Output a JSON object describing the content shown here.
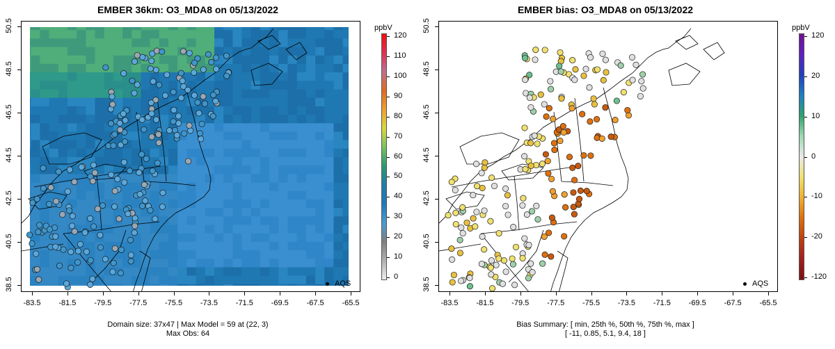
{
  "left": {
    "title": "EMBER 36km: O3_MDA8 on 05/13/2022",
    "unit": "ppbV",
    "colorbar_ticks": [
      "0",
      "10",
      "20",
      "30",
      "40",
      "50",
      "60",
      "70",
      "80",
      "90",
      "100",
      "110",
      "120"
    ],
    "colorbar_colors": [
      "#eeeeee",
      "#b0b0b0",
      "#808080",
      "#4a9bd0",
      "#1f7ab8",
      "#1c7fa8",
      "#2a9a70",
      "#7ac060",
      "#d8d840",
      "#eda030",
      "#e06a20",
      "#c07090",
      "#e03050",
      "#f01010"
    ],
    "legend_label": "AQS",
    "caption_line1": "Domain size: 37x47 | Max Model = 59 at (22, 3)",
    "caption_line2": "Max Obs: 64"
  },
  "right": {
    "title": "EMBER bias: O3_MDA8 on 05/13/2022",
    "unit": "ppbV",
    "colorbar_ticks": [
      "120",
      "20",
      "10",
      "0",
      "-10",
      "-20",
      "-120"
    ],
    "colorbar_colors": [
      "#7a1010",
      "#a02020",
      "#c04010",
      "#dd7010",
      "#eeb030",
      "#f0e070",
      "#e8e8e8",
      "#a0d8b0",
      "#30a070",
      "#2080c0",
      "#2040c0",
      "#6020c0",
      "#701090"
    ],
    "legend_label": "AQS",
    "caption_line1": "Bias Summary: [ min, 25th %, 50th %, 75th %, max ]",
    "caption_line2": "[ -11,   0.85,   5.1,   9.4,   18 ]"
  },
  "x_ticks": [
    "-83.5",
    "-81.5",
    "-79.5",
    "-77.5",
    "-75.5",
    "-73.5",
    "-71.5",
    "-69.5",
    "-67.5",
    "-65.5"
  ],
  "y_ticks": [
    "50.5",
    "48.5",
    "46.5",
    "44.5",
    "42.5",
    "40.5",
    "38.5"
  ]
}
